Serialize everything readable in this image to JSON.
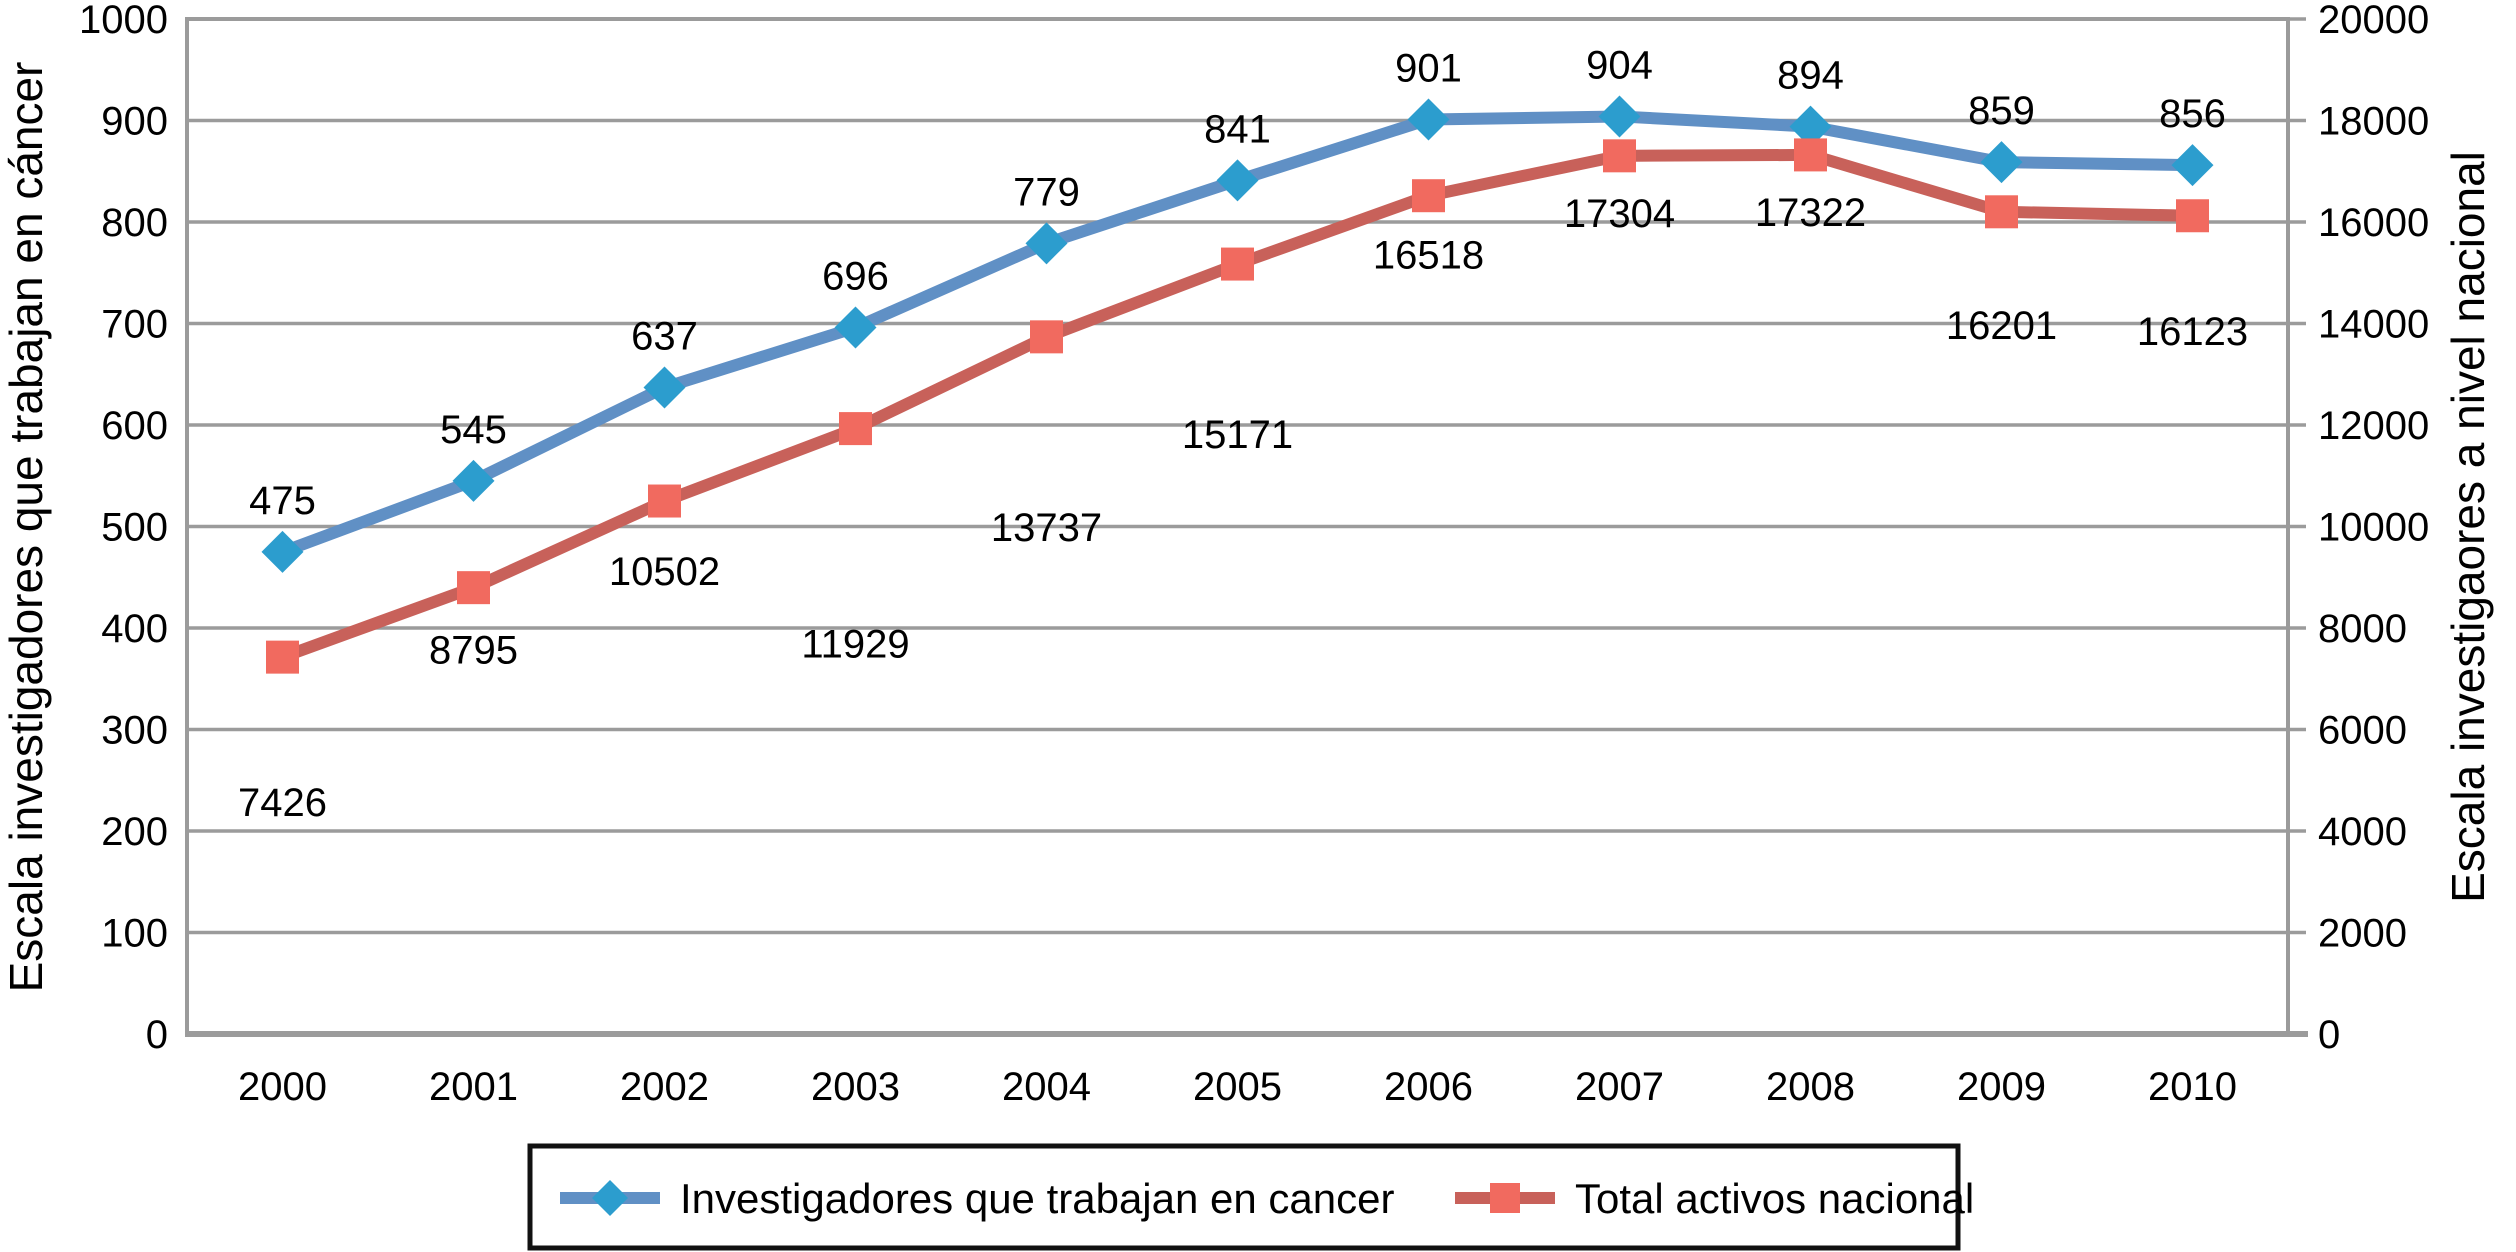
{
  "chart_data": {
    "type": "line",
    "title": "",
    "categories": [
      "2000",
      "2001",
      "2002",
      "2003",
      "2004",
      "2005",
      "2006",
      "2007",
      "2008",
      "2009",
      "2010"
    ],
    "series": [
      {
        "name": "Investigadores que trabajan en cancer",
        "axis": "left",
        "marker": "diamond",
        "line_color": "#6090C5",
        "marker_color": "#2C9DCE",
        "values": [
          475,
          545,
          637,
          696,
          779,
          841,
          901,
          904,
          894,
          859,
          856
        ]
      },
      {
        "name": "Total activos nacional",
        "axis": "right",
        "marker": "square",
        "line_color": "#C8615A",
        "marker_color": "#F16A5F",
        "values": [
          7426,
          8795,
          10502,
          11929,
          13737,
          15171,
          16518,
          17304,
          17322,
          16201,
          16123
        ]
      }
    ],
    "left_axis": {
      "title": "Escala investigadores que trabajan en cáncer",
      "min": 0,
      "max": 1000,
      "ticks": [
        "0",
        "100",
        "200",
        "300",
        "400",
        "500",
        "600",
        "700",
        "800",
        "900",
        "1000"
      ]
    },
    "right_axis": {
      "title": "Escala investigaores a nivel nacional",
      "min": 0,
      "max": 20000,
      "ticks": [
        "0",
        "2000",
        "4000",
        "6000",
        "8000",
        "10000",
        "12000",
        "14000",
        "16000",
        "18000",
        "20000"
      ]
    },
    "grid": {
      "show": true,
      "color": "#9B9B9B"
    },
    "legend": {
      "position": "bottom",
      "border_color": "#111111"
    }
  }
}
